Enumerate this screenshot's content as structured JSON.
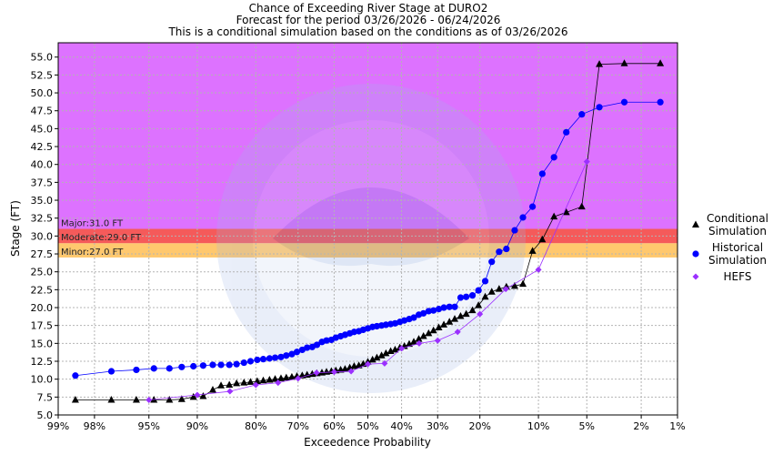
{
  "chart_data": {
    "type": "scatter",
    "title_lines": [
      "Chance of Exceeding River Stage at DURO2",
      "Forecast for the period 03/26/2026 - 06/24/2026",
      "This is a conditional simulation based on the conditions as of 03/26/2026"
    ],
    "xlabel": "Exceedence Probability",
    "ylabel": "Stage (FT)",
    "x_scale": "normal-probability",
    "x_ticks": [
      99,
      98,
      95,
      90,
      80,
      70,
      60,
      50,
      40,
      30,
      20,
      10,
      5,
      2,
      1
    ],
    "x_tick_labels": [
      "99%",
      "98%",
      "95%",
      "90%",
      "80%",
      "70%",
      "60%",
      "50%",
      "40%",
      "30%",
      "20%",
      "10%",
      "5%",
      "2%",
      "1%"
    ],
    "ylim": [
      5.0,
      57.0
    ],
    "y_ticks": [
      5.0,
      7.5,
      10.0,
      12.5,
      15.0,
      17.5,
      20.0,
      22.5,
      25.0,
      27.5,
      30.0,
      32.5,
      35.0,
      37.5,
      40.0,
      42.5,
      45.0,
      47.5,
      50.0,
      52.5,
      55.0
    ],
    "y_tick_labels": [
      "5.0",
      "7.5",
      "10.0",
      "12.5",
      "15.0",
      "17.5",
      "20.0",
      "22.5",
      "25.0",
      "27.5",
      "30.0",
      "32.5",
      "35.0",
      "37.5",
      "40.0",
      "42.5",
      "45.0",
      "47.5",
      "50.0",
      "52.5",
      "55.0"
    ],
    "grid": true,
    "legend_position": "right",
    "flood_bands": [
      {
        "label": "Minor:27.0 FT",
        "from": 27.0,
        "to": 29.0,
        "color": "#ffc86e"
      },
      {
        "label": "Moderate:29.0 FT",
        "from": 29.0,
        "to": 31.0,
        "color": "#f55a5a"
      },
      {
        "label": "Major:31.0 FT",
        "from": 31.0,
        "to": 57.0,
        "color": "#dd72ff"
      }
    ],
    "series": [
      {
        "name": "Conditional Simulation",
        "legend_lines": [
          "Conditional",
          "Simulation"
        ],
        "marker": "triangle",
        "color": "#000000",
        "x": [
          98.6,
          97.3,
          95.9,
          94.6,
          93.2,
          91.9,
          90.5,
          89.2,
          87.8,
          86.5,
          85.1,
          83.8,
          82.4,
          81.1,
          79.7,
          78.4,
          77.0,
          75.7,
          74.3,
          73.0,
          71.6,
          70.3,
          68.9,
          67.6,
          66.2,
          64.9,
          63.5,
          62.2,
          60.8,
          59.5,
          58.1,
          56.8,
          55.4,
          54.1,
          52.7,
          51.4,
          50.0,
          48.6,
          47.3,
          45.9,
          44.6,
          43.2,
          41.9,
          40.5,
          39.2,
          37.8,
          36.5,
          35.1,
          33.8,
          32.4,
          31.1,
          29.7,
          28.4,
          27.0,
          25.7,
          24.3,
          23.0,
          21.6,
          20.3,
          18.9,
          17.6,
          16.2,
          14.9,
          13.5,
          12.2,
          10.8,
          9.5,
          8.1,
          6.8,
          5.4,
          4.1,
          2.7,
          1.4
        ],
        "y": [
          7.1,
          7.1,
          7.1,
          7.1,
          7.1,
          7.2,
          7.5,
          7.6,
          8.5,
          9.1,
          9.2,
          9.4,
          9.5,
          9.6,
          9.7,
          9.8,
          9.9,
          10.0,
          10.1,
          10.2,
          10.3,
          10.4,
          10.5,
          10.6,
          10.7,
          10.8,
          10.9,
          11.0,
          11.1,
          11.2,
          11.3,
          11.4,
          11.6,
          11.8,
          11.9,
          12.1,
          12.4,
          12.7,
          13.0,
          13.3,
          13.6,
          13.9,
          14.1,
          14.4,
          14.6,
          14.9,
          15.2,
          15.6,
          16.0,
          16.4,
          16.8,
          17.2,
          17.6,
          18.0,
          18.4,
          18.8,
          19.1,
          19.6,
          20.3,
          21.5,
          22.2,
          22.6,
          22.9,
          23.0,
          23.3,
          27.9,
          29.5,
          32.7,
          33.3,
          34.1,
          54.0,
          54.1,
          54.1
        ]
      },
      {
        "name": "Historical Simulation",
        "legend_lines": [
          "Historical",
          "Simulation"
        ],
        "marker": "circle",
        "color": "#0000ff",
        "x": [
          98.6,
          97.3,
          95.9,
          94.6,
          93.2,
          91.9,
          90.5,
          89.2,
          87.8,
          86.5,
          85.1,
          83.8,
          82.4,
          81.1,
          79.7,
          78.4,
          77.0,
          75.7,
          74.3,
          73.0,
          71.6,
          70.3,
          68.9,
          67.6,
          66.2,
          64.9,
          63.5,
          62.2,
          60.8,
          59.5,
          58.1,
          56.8,
          55.4,
          54.1,
          52.7,
          51.4,
          50.0,
          48.6,
          47.3,
          45.9,
          44.6,
          43.2,
          41.9,
          40.5,
          39.2,
          37.8,
          36.5,
          35.1,
          33.8,
          32.4,
          31.1,
          29.7,
          28.4,
          27.0,
          25.7,
          24.3,
          23.0,
          21.6,
          20.3,
          18.9,
          17.6,
          16.2,
          14.9,
          13.5,
          12.2,
          10.8,
          9.5,
          8.1,
          6.8,
          5.4,
          4.1,
          2.7,
          1.4
        ],
        "y": [
          10.5,
          11.1,
          11.3,
          11.5,
          11.5,
          11.7,
          11.8,
          11.9,
          12.0,
          12.0,
          12.0,
          12.1,
          12.3,
          12.5,
          12.7,
          12.8,
          12.9,
          13.0,
          13.1,
          13.3,
          13.5,
          13.8,
          14.1,
          14.4,
          14.5,
          14.8,
          15.2,
          15.4,
          15.5,
          15.8,
          16.0,
          16.2,
          16.4,
          16.6,
          16.7,
          16.9,
          17.1,
          17.3,
          17.4,
          17.5,
          17.6,
          17.7,
          17.8,
          18.0,
          18.2,
          18.4,
          18.6,
          19.0,
          19.2,
          19.5,
          19.6,
          19.8,
          20.0,
          20.1,
          20.1,
          21.4,
          21.5,
          21.7,
          22.4,
          23.7,
          26.4,
          27.8,
          28.2,
          30.8,
          32.6,
          34.1,
          38.7,
          41.0,
          44.5,
          47.0,
          48.0,
          48.7,
          48.7
        ]
      },
      {
        "name": "HEFS",
        "legend_lines": [
          "HEFS"
        ],
        "marker": "diamond",
        "color": "#9b30ff",
        "x": [
          95.0,
          90.0,
          85.0,
          80.0,
          75.0,
          70.0,
          65.0,
          60.0,
          55.0,
          50.0,
          45.0,
          40.0,
          35.0,
          30.0,
          25.0,
          20.0,
          15.0,
          10.0,
          5.0
        ],
        "y": [
          7.1,
          7.8,
          8.3,
          9.2,
          9.5,
          10.1,
          10.9,
          11.0,
          11.1,
          12.1,
          12.2,
          14.3,
          15.0,
          15.4,
          16.6,
          19.1,
          22.6,
          25.3,
          40.4
        ]
      }
    ]
  }
}
